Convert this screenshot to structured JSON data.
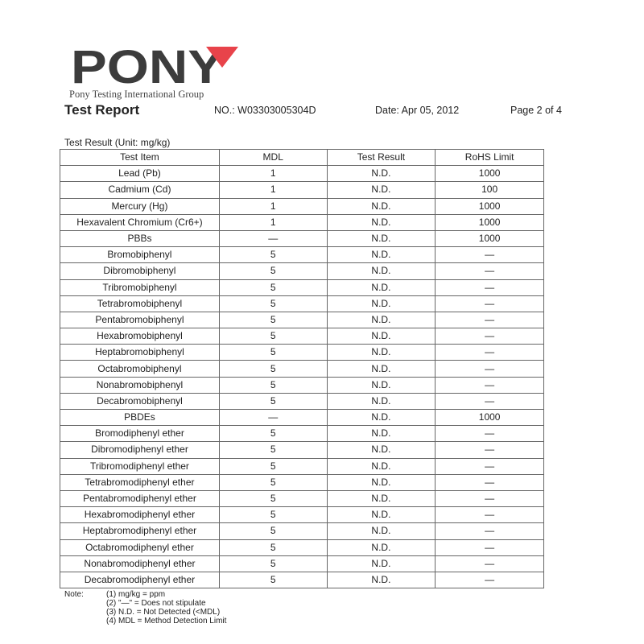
{
  "header": {
    "logo_text": "PONY",
    "group_name": "Pony Testing International Group",
    "title": "Test Report",
    "report_no": "NO.: W03303005304D",
    "date": "Date: Apr 05, 2012",
    "page": "Page 2 of 4",
    "brand_colors": {
      "logo_gray": "#3c3c3c",
      "logo_red": "#e8434a"
    }
  },
  "table": {
    "caption": "Test Result (Unit: mg/kg)",
    "columns": [
      "Test Item",
      "MDL",
      "Test Result",
      "RoHS Limit"
    ],
    "rows": [
      [
        "Lead (Pb)",
        "1",
        "N.D.",
        "1000"
      ],
      [
        "Cadmium (Cd)",
        "1",
        "N.D.",
        "100"
      ],
      [
        "Mercury (Hg)",
        "1",
        "N.D.",
        "1000"
      ],
      [
        "Hexavalent Chromium (Cr6+)",
        "1",
        "N.D.",
        "1000"
      ],
      [
        "PBBs",
        "—",
        "N.D.",
        "1000"
      ],
      [
        "Bromobiphenyl",
        "5",
        "N.D.",
        "—"
      ],
      [
        "Dibromobiphenyl",
        "5",
        "N.D.",
        "—"
      ],
      [
        "Tribromobiphenyl",
        "5",
        "N.D.",
        "—"
      ],
      [
        "Tetrabromobiphenyl",
        "5",
        "N.D.",
        "—"
      ],
      [
        "Pentabromobiphenyl",
        "5",
        "N.D.",
        "—"
      ],
      [
        "Hexabromobiphenyl",
        "5",
        "N.D.",
        "—"
      ],
      [
        "Heptabromobiphenyl",
        "5",
        "N.D.",
        "—"
      ],
      [
        "Octabromobiphenyl",
        "5",
        "N.D.",
        "—"
      ],
      [
        "Nonabromobiphenyl",
        "5",
        "N.D.",
        "—"
      ],
      [
        "Decabromobiphenyl",
        "5",
        "N.D.",
        "—"
      ],
      [
        "PBDEs",
        "—",
        "N.D.",
        "1000"
      ],
      [
        "Bromodiphenyl ether",
        "5",
        "N.D.",
        "—"
      ],
      [
        "Dibromodiphenyl ether",
        "5",
        "N.D.",
        "—"
      ],
      [
        "Tribromodiphenyl ether",
        "5",
        "N.D.",
        "—"
      ],
      [
        "Tetrabromodiphenyl ether",
        "5",
        "N.D.",
        "—"
      ],
      [
        "Pentabromodiphenyl ether",
        "5",
        "N.D.",
        "—"
      ],
      [
        "Hexabromodiphenyl ether",
        "5",
        "N.D.",
        "—"
      ],
      [
        "Heptabromodiphenyl ether",
        "5",
        "N.D.",
        "—"
      ],
      [
        "Octabromodiphenyl ether",
        "5",
        "N.D.",
        "—"
      ],
      [
        "Nonabromodiphenyl ether",
        "5",
        "N.D.",
        "—"
      ],
      [
        "Decabromodiphenyl ether",
        "5",
        "N.D.",
        "—"
      ]
    ]
  },
  "notes": {
    "label": "Note:",
    "items": [
      "(1) mg/kg = ppm",
      "(2) \"—\" = Does not stipulate",
      "(3) N.D. = Not Detected (<MDL)",
      "(4) MDL = Method Detection Limit"
    ]
  }
}
